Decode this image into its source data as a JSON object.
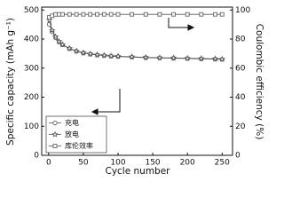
{
  "chart_data": {
    "type": "line",
    "xlabel": "Cycle number",
    "ylabel": "Specific capacity (mAh g⁻¹)",
    "y2label": "Coulombic efficiency (%)",
    "x": [
      1,
      5,
      10,
      15,
      20,
      30,
      40,
      50,
      60,
      70,
      80,
      90,
      100,
      120,
      140,
      160,
      180,
      200,
      220,
      240,
      250
    ],
    "xlim": [
      -10,
      265
    ],
    "xticks": [
      0,
      50,
      100,
      150,
      200,
      250
    ],
    "ylim": [
      0,
      510
    ],
    "yticks": [
      0,
      100,
      200,
      300,
      400,
      500
    ],
    "y2lim": [
      0,
      102
    ],
    "y2ticks": [
      0,
      20,
      40,
      60,
      80,
      100
    ],
    "legend": "lower left",
    "series": [
      {
        "name": "充电",
        "marker": "circle",
        "color": "#555555",
        "values": [
          450,
          425,
          405,
          390,
          380,
          367,
          358,
          352,
          348,
          345,
          343,
          341,
          340,
          338,
          336,
          335,
          334,
          333,
          332,
          331,
          330
        ]
      },
      {
        "name": "放电",
        "marker": "star",
        "color": "#555555",
        "values": [
          465,
          430,
          408,
          392,
          381,
          368,
          359,
          353,
          349,
          346,
          344,
          342,
          341,
          339,
          337,
          336,
          335,
          334,
          333,
          332,
          331
        ]
      },
      {
        "name": "库伦效率",
        "marker": "square",
        "color": "#555555",
        "axis": "y2",
        "values": [
          95,
          96,
          97,
          97,
          97,
          97,
          97,
          97,
          97,
          97,
          97,
          97,
          97,
          97,
          97,
          97,
          97,
          97,
          97,
          97,
          97
        ]
      }
    ]
  }
}
